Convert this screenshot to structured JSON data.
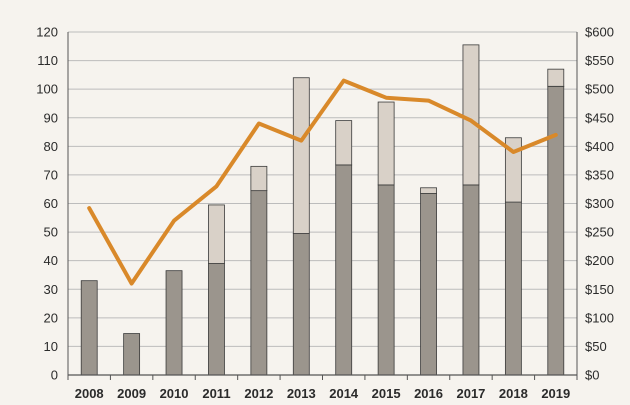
{
  "chart_data": {
    "type": "bar",
    "title": "",
    "xlabel": "",
    "ylabel": "",
    "categories": [
      "2008",
      "2009",
      "2010",
      "2011",
      "2012",
      "2013",
      "2014",
      "2015",
      "2016",
      "2017",
      "2018",
      "2019"
    ],
    "series": [
      {
        "values": [
          33,
          14.5,
          36.5,
          39,
          64.5,
          49.5,
          73.5,
          66.5,
          63.5,
          66.5,
          60.5,
          101
        ]
      },
      {
        "values": [
          0,
          0,
          0,
          20.5,
          8.5,
          54.5,
          15.5,
          29,
          2,
          49,
          22.5,
          6
        ]
      },
      {
        "values": [
          292,
          160,
          270,
          330,
          440,
          410,
          515,
          485,
          480,
          445,
          390,
          420
        ]
      }
    ],
    "stacked": true,
    "left_axis": {
      "ylim": [
        0,
        120
      ],
      "ticks": [
        0,
        10,
        20,
        30,
        40,
        50,
        60,
        70,
        80,
        90,
        100,
        110,
        120
      ],
      "tick_labels": [
        "0",
        "10",
        "20",
        "30",
        "40",
        "50",
        "60",
        "70",
        "80",
        "90",
        "100",
        "110",
        "120"
      ]
    },
    "right_axis": {
      "ylim": [
        0,
        600
      ],
      "ticks": [
        0,
        50,
        100,
        150,
        200,
        250,
        300,
        350,
        400,
        450,
        500,
        550,
        600
      ],
      "tick_labels": [
        "$0",
        "$50",
        "$100",
        "$150",
        "$200",
        "$250",
        "$300",
        "$350",
        "$400",
        "$450",
        "$500",
        "$550",
        "$600"
      ]
    },
    "grid": true,
    "legend": "none",
    "colors": {
      "bar_lower": "#9b958d",
      "bar_upper": "#d9d1c8",
      "line": "#d9892a",
      "grid": "#bcbcbc",
      "axis": "#555555",
      "background": "#f6f3ee"
    }
  }
}
